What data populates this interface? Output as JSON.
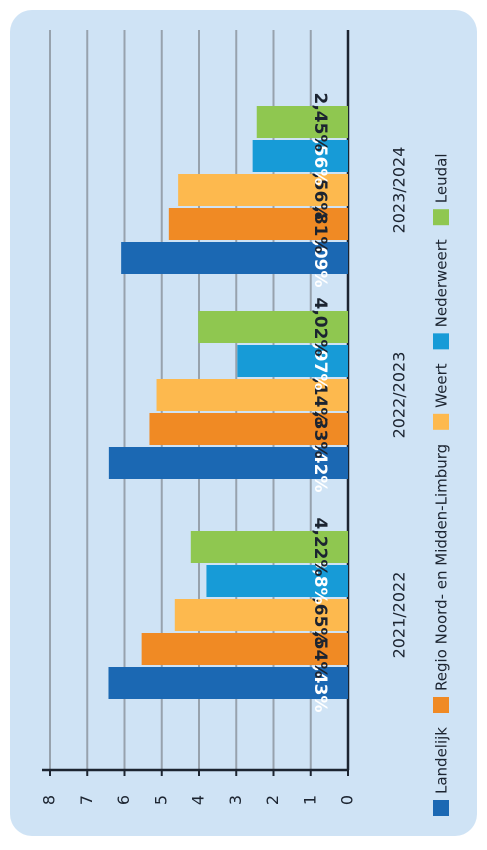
{
  "chart_data": {
    "type": "bar",
    "categories": [
      "2021/2022",
      "2022/2023",
      "2023/2024"
    ],
    "series": [
      {
        "name": "Landelijk",
        "color": "#1b68b3",
        "values": [
          6.43,
          6.42,
          6.09
        ],
        "value_labels": [
          "6,43%",
          "6,42%",
          "6,09%"
        ]
      },
      {
        "name": "Regio Noord- en Midden-Limburg",
        "color": "#f08a24",
        "values": [
          5.54,
          5.33,
          4.81
        ],
        "value_labels": [
          "5,54%",
          "5,33%",
          "4,81%"
        ]
      },
      {
        "name": "Weert",
        "color": "#fdb94e",
        "values": [
          4.65,
          5.14,
          4.56
        ],
        "value_labels": [
          "4,65%",
          "5,14%",
          "4,56%"
        ]
      },
      {
        "name": "Nederweert",
        "color": "#179bd7",
        "values": [
          3.8,
          2.97,
          2.56
        ],
        "value_labels": [
          "3,8%",
          "2,97%",
          "2,56%"
        ]
      },
      {
        "name": "Leudal",
        "color": "#8fc750",
        "values": [
          4.22,
          4.02,
          2.45
        ],
        "value_labels": [
          "4,22%",
          "4,02%",
          "2,45%"
        ]
      }
    ],
    "ylim": [
      0,
      8
    ],
    "yticks": [
      0,
      1,
      2,
      3,
      4,
      5,
      6,
      7,
      8
    ],
    "grid": true,
    "legend": "bottom"
  }
}
